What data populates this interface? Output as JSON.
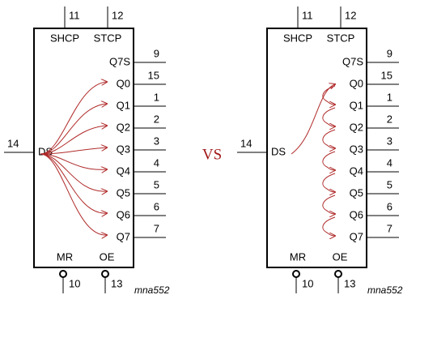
{
  "separator": "VS",
  "diagrams": [
    {
      "top_pins": [
        {
          "label": "SHCP",
          "pin": "11"
        },
        {
          "label": "STCP",
          "pin": "12"
        }
      ],
      "input": {
        "label": "DS",
        "pin": "14"
      },
      "outputs": [
        {
          "label": "Q7S",
          "pin": "9"
        },
        {
          "label": "Q0",
          "pin": "15"
        },
        {
          "label": "Q1",
          "pin": "1"
        },
        {
          "label": "Q2",
          "pin": "2"
        },
        {
          "label": "Q3",
          "pin": "3"
        },
        {
          "label": "Q4",
          "pin": "4"
        },
        {
          "label": "Q5",
          "pin": "5"
        },
        {
          "label": "Q6",
          "pin": "6"
        },
        {
          "label": "Q7",
          "pin": "7"
        }
      ],
      "bottom_pins": [
        {
          "label": "MR",
          "pin": "10"
        },
        {
          "label": "OE",
          "pin": "13"
        }
      ],
      "caption": "mna552"
    },
    {
      "top_pins": [
        {
          "label": "SHCP",
          "pin": "11"
        },
        {
          "label": "STCP",
          "pin": "12"
        }
      ],
      "input": {
        "label": "DS",
        "pin": "14"
      },
      "outputs": [
        {
          "label": "Q7S",
          "pin": "9"
        },
        {
          "label": "Q0",
          "pin": "15"
        },
        {
          "label": "Q1",
          "pin": "1"
        },
        {
          "label": "Q2",
          "pin": "2"
        },
        {
          "label": "Q3",
          "pin": "3"
        },
        {
          "label": "Q4",
          "pin": "4"
        },
        {
          "label": "Q5",
          "pin": "5"
        },
        {
          "label": "Q6",
          "pin": "6"
        },
        {
          "label": "Q7",
          "pin": "7"
        }
      ],
      "bottom_pins": [
        {
          "label": "MR",
          "pin": "10"
        },
        {
          "label": "OE",
          "pin": "13"
        }
      ],
      "caption": "mna552"
    }
  ]
}
